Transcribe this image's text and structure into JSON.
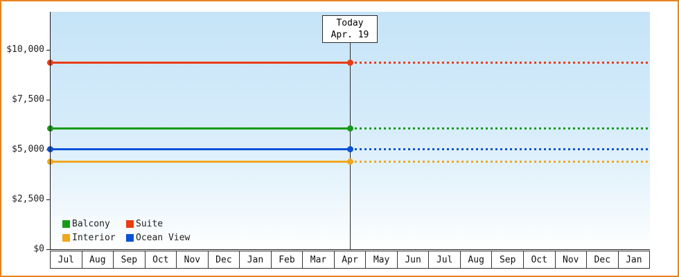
{
  "colors": {
    "frame_border": "#e8821e",
    "axis": "#1a1a1a",
    "plot_bg_top": "#c6e4f8",
    "plot_bg_bottom": "#ffffff"
  },
  "chart_data": {
    "type": "line",
    "title": "",
    "xlabel": "",
    "ylabel": "",
    "grid": false,
    "legend_position": "bottom-left-inside",
    "x_categories": [
      "Jul",
      "Aug",
      "Sep",
      "Oct",
      "Nov",
      "Dec",
      "Jan",
      "Feb",
      "Mar",
      "Apr",
      "May",
      "Jun",
      "Jul",
      "Aug",
      "Sep",
      "Oct",
      "Nov",
      "Dec",
      "Jan"
    ],
    "today": {
      "label": "Today",
      "date": "Apr. 19",
      "month_index": 9
    },
    "ylim": [
      0,
      11900
    ],
    "y_ticks": [
      {
        "label": "$10,000",
        "value": 10000
      },
      {
        "label": "$7,500",
        "value": 7500
      },
      {
        "label": "$5,000",
        "value": 5000
      },
      {
        "label": "$2,500",
        "value": 2500
      },
      {
        "label": "$0",
        "value": 0
      }
    ],
    "series": [
      {
        "name": "Suite",
        "color": "#ea3b12",
        "value": 9350,
        "style": "solid-then-dotted"
      },
      {
        "name": "Balcony",
        "color": "#169a16",
        "value": 6050,
        "style": "solid-then-dotted"
      },
      {
        "name": "Ocean View",
        "color": "#0b51d8",
        "value": 5000,
        "style": "solid-then-dotted"
      },
      {
        "name": "Interior",
        "color": "#f0a71c",
        "value": 4400,
        "style": "solid-then-dotted"
      }
    ],
    "legend_rows": [
      [
        "Balcony",
        "Suite"
      ],
      [
        "Interior",
        "Ocean View"
      ]
    ]
  }
}
